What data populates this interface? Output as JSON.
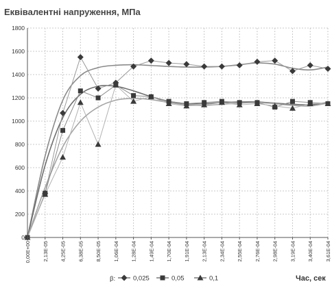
{
  "chart_data": {
    "type": "line",
    "title": "Еквівалентні напруження, МПа",
    "xlabel": "Час, сек",
    "ylabel": "",
    "ylim": [
      0,
      1800
    ],
    "yticks": [
      "0",
      "200",
      "400",
      "600",
      "800",
      "1000",
      "1200",
      "1400",
      "1600",
      "1800"
    ],
    "categories": [
      "0,00E+00",
      "2,13E-05",
      "4,25E-05",
      "6,38E-05",
      "8,50E-05",
      "1,06E-04",
      "1,28E-04",
      "1,49E-04",
      "1,70E-04",
      "1,91E-04",
      "2,13E-04",
      "2,34E-04",
      "2,55E-04",
      "2,76E-04",
      "2,98E-04",
      "3,19E-04",
      "3,40E-04",
      "3,61E-04"
    ],
    "legend_title": "β:",
    "legend_position": "bottom",
    "grid": true,
    "series": [
      {
        "name": "0,025",
        "marker": "diamond",
        "color": "#3a3a3a",
        "values": [
          0,
          380,
          1070,
          1550,
          1280,
          1330,
          1470,
          1520,
          1500,
          1490,
          1470,
          1470,
          1480,
          1510,
          1520,
          1430,
          1480,
          1450
        ],
        "trend": [
          0,
          700,
          1180,
          1390,
          1460,
          1480,
          1485,
          1478,
          1470,
          1465,
          1465,
          1470,
          1485,
          1500,
          1490,
          1455,
          1440,
          1465
        ]
      },
      {
        "name": "0,05",
        "marker": "square",
        "color": "#3a3a3a",
        "values": [
          0,
          380,
          920,
          1260,
          1200,
          1310,
          1220,
          1210,
          1170,
          1150,
          1160,
          1170,
          1160,
          1160,
          1120,
          1170,
          1160,
          1150
        ],
        "trend": [
          0,
          620,
          1030,
          1230,
          1300,
          1300,
          1260,
          1210,
          1170,
          1150,
          1150,
          1160,
          1165,
          1165,
          1155,
          1145,
          1140,
          1160
        ]
      },
      {
        "name": "0,1",
        "marker": "triangle",
        "color": "#3a3a3a",
        "values": [
          0,
          370,
          690,
          1160,
          800,
          1310,
          1170,
          1210,
          1150,
          1130,
          1140,
          1160,
          1140,
          1150,
          1130,
          1110,
          1150,
          1150
        ],
        "trend": [
          0,
          430,
          780,
          1000,
          1120,
          1180,
          1195,
          1185,
          1160,
          1140,
          1135,
          1145,
          1155,
          1160,
          1150,
          1135,
          1130,
          1155
        ]
      }
    ]
  }
}
